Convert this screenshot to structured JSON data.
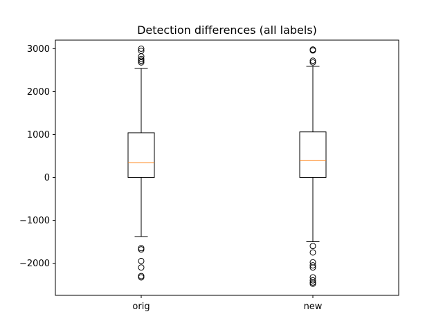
{
  "chart_data": {
    "type": "box",
    "title": "Detection differences (all labels)",
    "xlabel": "",
    "ylabel": "",
    "categories": [
      "orig",
      "new"
    ],
    "ylim": [
      -2750,
      3200
    ],
    "yticks": [
      -2000,
      -1000,
      0,
      1000,
      2000,
      3000
    ],
    "ytick_labels": [
      "−2000",
      "−1000",
      "0",
      "1000",
      "2000",
      "3000"
    ],
    "grid": false,
    "boxes": [
      {
        "name": "orig",
        "whisker_low": -1380,
        "q1": 0,
        "median": 340,
        "q3": 1040,
        "whisker_high": 2540,
        "outliers": [
          3000,
          2950,
          2820,
          2760,
          2720,
          2680,
          -1650,
          -1680,
          -1950,
          -2100,
          -2300,
          -2330
        ]
      },
      {
        "name": "new",
        "whisker_low": -1500,
        "q1": 0,
        "median": 390,
        "q3": 1060,
        "whisker_high": 2590,
        "outliers": [
          2980,
          2960,
          2720,
          2680,
          -1600,
          -1750,
          -1980,
          -2050,
          -2100,
          -2330,
          -2400,
          -2450,
          -2480
        ]
      }
    ],
    "colors": {
      "box": "#000000",
      "median": "#ff7f0e",
      "outlier": "#000000"
    }
  }
}
